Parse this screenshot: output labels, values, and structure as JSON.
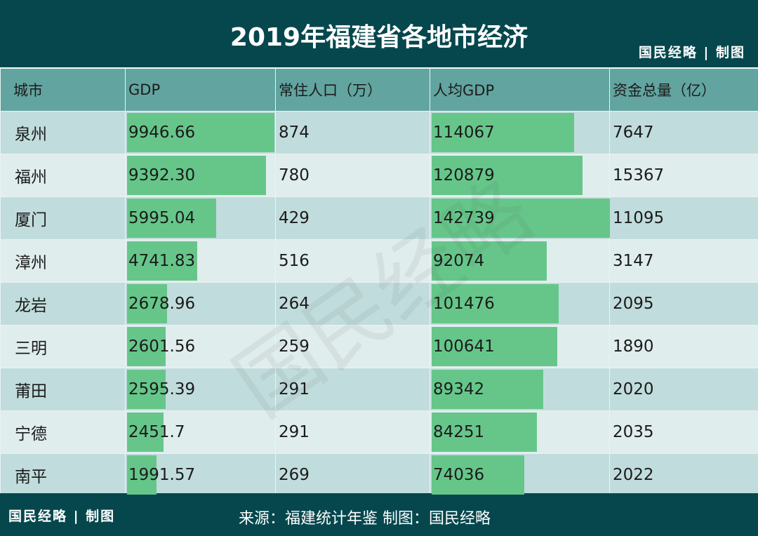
{
  "title": "2019年福建省各地市经济",
  "brand": "国民经略 | 制图",
  "watermark": "国民经略",
  "footer": {
    "source": "来源：福建统计年鉴  制图：国民经略"
  },
  "colors": {
    "header_bg": "#05474d",
    "column_header_bg": "#62a4a0",
    "row_odd": "#c1dcdc",
    "row_even": "#e0eded",
    "bar": "#66c68a"
  },
  "chart_data": {
    "type": "table",
    "columns": [
      "城市",
      "GDP",
      "常住人口（万）",
      "人均GDP",
      "资金总量（亿）"
    ],
    "data_bar_columns": [
      "GDP",
      "人均GDP"
    ],
    "rows": [
      [
        "泉州",
        "9946.66",
        "874",
        "114067",
        "7647"
      ],
      [
        "福州",
        "9392.30",
        "780",
        "120879",
        "15367"
      ],
      [
        "厦门",
        "5995.04",
        "429",
        "142739",
        "11095"
      ],
      [
        "漳州",
        "4741.83",
        "516",
        "92074",
        "3147"
      ],
      [
        "龙岩",
        "2678.96",
        "264",
        "101476",
        "2095"
      ],
      [
        "三明",
        "2601.56",
        "259",
        "100641",
        "1890"
      ],
      [
        "莆田",
        "2595.39",
        "291",
        "89342",
        "2020"
      ],
      [
        "宁德",
        "2451.7",
        "291",
        "84251",
        "2035"
      ],
      [
        "南平",
        "1991.57",
        "269",
        "74036",
        "2022"
      ]
    ]
  }
}
